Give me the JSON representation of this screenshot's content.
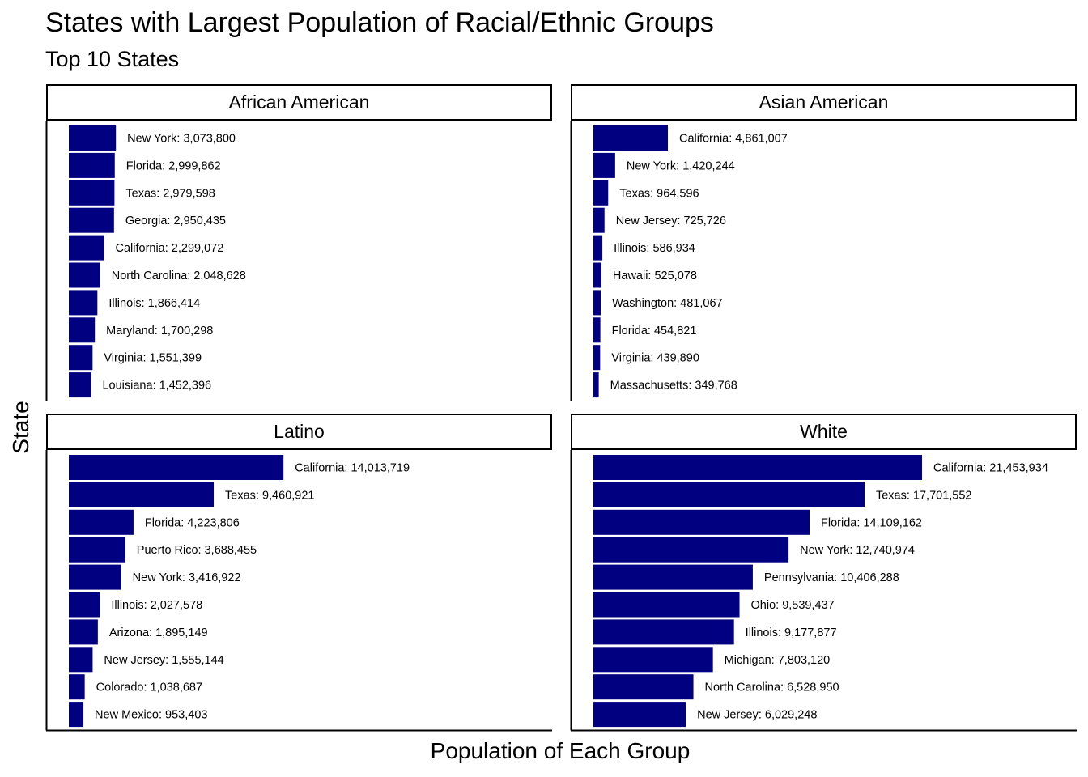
{
  "chart_data": {
    "type": "bar",
    "orientation": "horizontal",
    "title": "States with Largest Population of Racial/Ethnic Groups",
    "subtitle": "Top 10 States",
    "xlabel": "Population of Each Group",
    "ylabel": "State",
    "xlim": [
      0,
      21453934
    ],
    "bar_color": "#000080",
    "grid": false,
    "facets": [
      {
        "name": "African American",
        "bars": [
          {
            "label": "New York: 3,073,800",
            "value": 3073800
          },
          {
            "label": "Florida: 2,999,862",
            "value": 2999862
          },
          {
            "label": "Texas: 2,979,598",
            "value": 2979598
          },
          {
            "label": "Georgia: 2,950,435",
            "value": 2950435
          },
          {
            "label": "California: 2,299,072",
            "value": 2299072
          },
          {
            "label": "North Carolina: 2,048,628",
            "value": 2048628
          },
          {
            "label": "Illinois: 1,866,414",
            "value": 1866414
          },
          {
            "label": "Maryland: 1,700,298",
            "value": 1700298
          },
          {
            "label": "Virginia: 1,551,399",
            "value": 1551399
          },
          {
            "label": "Louisiana: 1,452,396",
            "value": 1452396
          }
        ]
      },
      {
        "name": "Asian American",
        "bars": [
          {
            "label": "California: 4,861,007",
            "value": 4861007
          },
          {
            "label": "New York: 1,420,244",
            "value": 1420244
          },
          {
            "label": "Texas: 964,596",
            "value": 964596
          },
          {
            "label": "New Jersey: 725,726",
            "value": 725726
          },
          {
            "label": "Illinois: 586,934",
            "value": 586934
          },
          {
            "label": "Hawaii: 525,078",
            "value": 525078
          },
          {
            "label": "Washington: 481,067",
            "value": 481067
          },
          {
            "label": "Florida: 454,821",
            "value": 454821
          },
          {
            "label": "Virginia: 439,890",
            "value": 439890
          },
          {
            "label": "Massachusetts: 349,768",
            "value": 349768
          }
        ]
      },
      {
        "name": "Latino",
        "bars": [
          {
            "label": "California: 14,013,719",
            "value": 14013719
          },
          {
            "label": "Texas: 9,460,921",
            "value": 9460921
          },
          {
            "label": "Florida: 4,223,806",
            "value": 4223806
          },
          {
            "label": "Puerto Rico: 3,688,455",
            "value": 3688455
          },
          {
            "label": "New York: 3,416,922",
            "value": 3416922
          },
          {
            "label": "Illinois: 2,027,578",
            "value": 2027578
          },
          {
            "label": "Arizona: 1,895,149",
            "value": 1895149
          },
          {
            "label": "New Jersey: 1,555,144",
            "value": 1555144
          },
          {
            "label": "Colorado: 1,038,687",
            "value": 1038687
          },
          {
            "label": "New Mexico: 953,403",
            "value": 953403
          }
        ]
      },
      {
        "name": "White",
        "bars": [
          {
            "label": "California: 21,453,934",
            "value": 21453934
          },
          {
            "label": "Texas: 17,701,552",
            "value": 17701552
          },
          {
            "label": "Florida: 14,109,162",
            "value": 14109162
          },
          {
            "label": "New York: 12,740,974",
            "value": 12740974
          },
          {
            "label": "Pennsylvania: 10,406,288",
            "value": 10406288
          },
          {
            "label": "Ohio: 9,539,437",
            "value": 9539437
          },
          {
            "label": "Illinois: 9,177,877",
            "value": 9177877
          },
          {
            "label": "Michigan: 7,803,120",
            "value": 7803120
          },
          {
            "label": "North Carolina: 6,528,950",
            "value": 6528950
          },
          {
            "label": "New Jersey: 6,029,248",
            "value": 6029248
          }
        ]
      }
    ]
  }
}
